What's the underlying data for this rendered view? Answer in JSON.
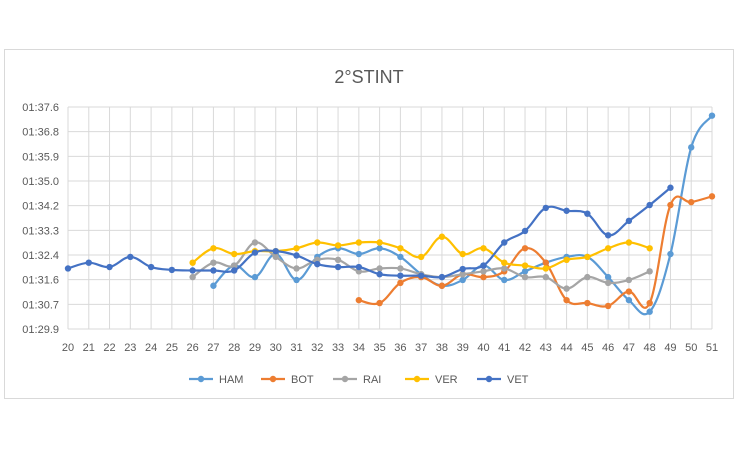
{
  "chart_data": {
    "type": "line",
    "title": "2°STINT",
    "xlabel": "",
    "ylabel": "",
    "x": [
      20,
      21,
      22,
      23,
      24,
      25,
      26,
      27,
      28,
      29,
      30,
      31,
      32,
      33,
      34,
      35,
      36,
      37,
      38,
      39,
      40,
      41,
      42,
      43,
      44,
      45,
      46,
      47,
      48,
      49,
      50,
      51
    ],
    "y_ticks": [
      "01:29.9",
      "01:30.7",
      "01:31.6",
      "01:32.4",
      "01:33.3",
      "01:34.2",
      "01:35.0",
      "01:35.9",
      "01:36.8",
      "01:37.6"
    ],
    "ylim_seconds": [
      89.9,
      97.6
    ],
    "grid": true,
    "legend_position": "bottom",
    "series": [
      {
        "name": "HAM",
        "color": "#5B9BD5",
        "values": [
          null,
          null,
          null,
          null,
          null,
          null,
          null,
          91.4,
          92.1,
          91.7,
          92.5,
          91.6,
          92.4,
          92.7,
          92.5,
          92.7,
          92.4,
          91.8,
          91.4,
          91.6,
          92.1,
          91.6,
          91.9,
          92.2,
          92.4,
          92.4,
          91.7,
          90.9,
          90.5,
          92.5,
          96.2,
          97.3
        ]
      },
      {
        "name": "BOT",
        "color": "#ED7D31",
        "values": [
          null,
          null,
          null,
          null,
          null,
          null,
          null,
          null,
          null,
          null,
          null,
          null,
          null,
          null,
          90.9,
          90.8,
          91.5,
          91.7,
          91.4,
          91.8,
          91.7,
          91.9,
          92.7,
          92.2,
          90.9,
          90.8,
          90.7,
          91.2,
          90.8,
          94.2,
          94.3,
          94.5
        ]
      },
      {
        "name": "RAI",
        "color": "#A5A5A5",
        "values": [
          null,
          null,
          null,
          null,
          null,
          null,
          91.7,
          92.2,
          92.1,
          92.9,
          92.4,
          92.0,
          92.3,
          92.3,
          91.9,
          92.0,
          92.0,
          91.8,
          91.7,
          91.8,
          91.9,
          92.0,
          91.7,
          91.7,
          91.3,
          91.7,
          91.5,
          91.6,
          91.9,
          null,
          null,
          null
        ]
      },
      {
        "name": "VER",
        "color": "#FFC000",
        "values": [
          null,
          null,
          null,
          null,
          null,
          null,
          92.2,
          92.7,
          92.5,
          92.6,
          92.6,
          92.7,
          92.9,
          92.8,
          92.9,
          92.9,
          92.7,
          92.4,
          93.1,
          92.5,
          92.7,
          92.2,
          92.1,
          92.0,
          92.3,
          92.4,
          92.7,
          92.9,
          92.7,
          null,
          null,
          null
        ]
      },
      {
        "name": "VET",
        "color": "#4472C4",
        "values": [
          92.0,
          92.2,
          92.05,
          92.4,
          92.05,
          91.95,
          91.93,
          91.93,
          91.93,
          92.55,
          92.6,
          92.45,
          92.15,
          92.05,
          92.05,
          91.8,
          91.75,
          91.75,
          91.7,
          91.98,
          92.1,
          92.9,
          93.3,
          94.1,
          94.0,
          93.9,
          93.15,
          93.65,
          94.2,
          94.8,
          null,
          null
        ]
      }
    ]
  }
}
